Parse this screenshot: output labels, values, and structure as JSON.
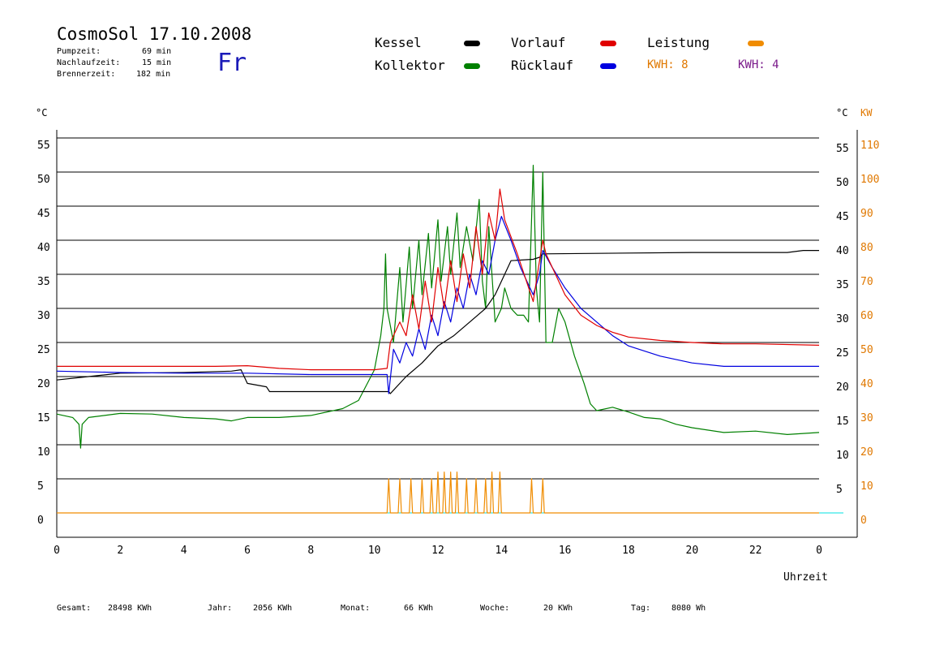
{
  "header": {
    "title": "CosmoSol 17.10.2008",
    "info": [
      {
        "label": "Pumpzeit:",
        "value": "69 min"
      },
      {
        "label": "Nachlaufzeit:",
        "value": "15 min"
      },
      {
        "label": "Brennerzeit:",
        "value": "182 min"
      }
    ],
    "weekday": "Fr"
  },
  "legend": {
    "items": [
      {
        "label": "Kessel",
        "color": "#000000"
      },
      {
        "label": "Vorlauf",
        "color": "#e00000"
      },
      {
        "label": "Leistung",
        "color": "#f08c00"
      },
      {
        "label": "Kollektor",
        "color": "#008000"
      },
      {
        "label": "Rücklauf",
        "color": "#0000e0"
      }
    ],
    "kwh1": {
      "text": "KWH: 8",
      "color": "#e07800"
    },
    "kwh2": {
      "text": "KWH: 4",
      "color": "#7a1a8a"
    }
  },
  "footer": [
    {
      "label": "Gesamt:",
      "value": "28498 KWh"
    },
    {
      "label": "Jahr:",
      "value": "2056 KWh"
    },
    {
      "label": "Monat:",
      "value": "66 KWh"
    },
    {
      "label": "Woche:",
      "value": "20 KWh"
    },
    {
      "label": "Tag:",
      "value": "8080 Wh"
    }
  ],
  "chart_data": {
    "type": "line",
    "xlabel": "Uhrzeit",
    "x_ticks": [
      "0",
      "2",
      "4",
      "6",
      "8",
      "10",
      "12",
      "14",
      "16",
      "18",
      "20",
      "22",
      "0"
    ],
    "xlim": [
      0,
      24
    ],
    "y_left_unit": "°C",
    "y_left_ticks": [
      "0",
      "5",
      "10",
      "15",
      "20",
      "25",
      "30",
      "35",
      "40",
      "45",
      "50",
      "55"
    ],
    "y_right_unit": "°C",
    "y_right_ticks": [
      "5",
      "10",
      "15",
      "20",
      "25",
      "30",
      "35",
      "40",
      "45",
      "50",
      "55"
    ],
    "y_right2_unit": "KW",
    "y_right2_ticks": [
      "0",
      "10",
      "20",
      "30",
      "40",
      "50",
      "60",
      "70",
      "80",
      "90",
      "100",
      "110"
    ],
    "ylim": [
      0,
      55
    ],
    "grid": true,
    "series": [
      {
        "name": "Kessel",
        "color": "#000000",
        "points": [
          [
            0,
            19.5
          ],
          [
            1,
            20
          ],
          [
            2,
            20.5
          ],
          [
            4,
            20.6
          ],
          [
            5.5,
            20.8
          ],
          [
            5.8,
            21
          ],
          [
            6,
            19
          ],
          [
            6.6,
            18.5
          ],
          [
            6.7,
            17.8
          ],
          [
            9.5,
            17.8
          ],
          [
            10.45,
            17.8
          ],
          [
            10.5,
            17.5
          ],
          [
            10.6,
            18
          ],
          [
            10.8,
            19
          ],
          [
            11,
            20
          ],
          [
            11.5,
            22
          ],
          [
            12,
            24.5
          ],
          [
            12.5,
            26
          ],
          [
            13,
            28
          ],
          [
            13.5,
            30
          ],
          [
            13.8,
            32
          ],
          [
            14.1,
            35
          ],
          [
            14.3,
            37
          ],
          [
            15,
            37.2
          ],
          [
            15.2,
            37.5
          ],
          [
            15.3,
            38
          ],
          [
            20,
            38.2
          ],
          [
            23,
            38.2
          ],
          [
            23.5,
            38.5
          ],
          [
            24,
            38.5
          ]
        ]
      },
      {
        "name": "Vorlauf",
        "color": "#e00000",
        "points": [
          [
            0,
            21.5
          ],
          [
            5,
            21.5
          ],
          [
            6,
            21.6
          ],
          [
            7,
            21.2
          ],
          [
            8,
            21
          ],
          [
            10,
            21
          ],
          [
            10.4,
            21.2
          ],
          [
            10.5,
            25
          ],
          [
            10.8,
            28
          ],
          [
            11,
            26
          ],
          [
            11.2,
            32
          ],
          [
            11.4,
            27
          ],
          [
            11.6,
            34
          ],
          [
            11.8,
            28
          ],
          [
            12,
            36
          ],
          [
            12.2,
            30
          ],
          [
            12.4,
            37
          ],
          [
            12.6,
            31
          ],
          [
            12.8,
            38
          ],
          [
            13,
            33
          ],
          [
            13.2,
            42
          ],
          [
            13.4,
            35
          ],
          [
            13.6,
            44
          ],
          [
            13.8,
            40
          ],
          [
            13.95,
            47.5
          ],
          [
            14.1,
            43
          ],
          [
            14.5,
            38
          ],
          [
            15,
            31
          ],
          [
            15.2,
            37
          ],
          [
            15.3,
            40
          ],
          [
            15.4,
            38
          ],
          [
            16,
            32
          ],
          [
            16.5,
            29
          ],
          [
            17,
            27.5
          ],
          [
            17.5,
            26.5
          ],
          [
            18,
            25.8
          ],
          [
            19,
            25.3
          ],
          [
            20,
            25
          ],
          [
            21,
            24.8
          ],
          [
            22,
            24.8
          ],
          [
            24,
            24.6
          ]
        ]
      },
      {
        "name": "Rücklauf",
        "color": "#0000e0",
        "points": [
          [
            0,
            20.8
          ],
          [
            2,
            20.6
          ],
          [
            4,
            20.5
          ],
          [
            6,
            20.5
          ],
          [
            8,
            20.3
          ],
          [
            10,
            20.3
          ],
          [
            10.4,
            20.3
          ],
          [
            10.45,
            17.5
          ],
          [
            10.6,
            24
          ],
          [
            10.8,
            22
          ],
          [
            11,
            25
          ],
          [
            11.2,
            23
          ],
          [
            11.4,
            27
          ],
          [
            11.6,
            24
          ],
          [
            11.8,
            29
          ],
          [
            12,
            26
          ],
          [
            12.2,
            31
          ],
          [
            12.4,
            28
          ],
          [
            12.6,
            33
          ],
          [
            12.8,
            30
          ],
          [
            13,
            35
          ],
          [
            13.2,
            32
          ],
          [
            13.4,
            37
          ],
          [
            13.6,
            35
          ],
          [
            13.8,
            40
          ],
          [
            14,
            43.5
          ],
          [
            14.3,
            40
          ],
          [
            14.6,
            36
          ],
          [
            15,
            32
          ],
          [
            15.2,
            35
          ],
          [
            15.3,
            38.5
          ],
          [
            15.6,
            36
          ],
          [
            16,
            33
          ],
          [
            16.5,
            30
          ],
          [
            17,
            28
          ],
          [
            17.5,
            26
          ],
          [
            18,
            24.5
          ],
          [
            19,
            23
          ],
          [
            20,
            22
          ],
          [
            21,
            21.5
          ],
          [
            24,
            21.5
          ]
        ]
      },
      {
        "name": "Kollektor",
        "color": "#008000",
        "points": [
          [
            0,
            14.5
          ],
          [
            0.5,
            14
          ],
          [
            0.7,
            13
          ],
          [
            0.75,
            9.5
          ],
          [
            0.8,
            13
          ],
          [
            1,
            14
          ],
          [
            2,
            14.6
          ],
          [
            3,
            14.5
          ],
          [
            4,
            14
          ],
          [
            5,
            13.8
          ],
          [
            5.5,
            13.5
          ],
          [
            6,
            14
          ],
          [
            7,
            14
          ],
          [
            8,
            14.3
          ],
          [
            9,
            15.3
          ],
          [
            9.5,
            16.5
          ],
          [
            10,
            21
          ],
          [
            10.2,
            26
          ],
          [
            10.3,
            30
          ],
          [
            10.35,
            38
          ],
          [
            10.4,
            30
          ],
          [
            10.6,
            25
          ],
          [
            10.8,
            36
          ],
          [
            10.9,
            28
          ],
          [
            11.1,
            39
          ],
          [
            11.2,
            30
          ],
          [
            11.4,
            40
          ],
          [
            11.5,
            32
          ],
          [
            11.7,
            41
          ],
          [
            11.8,
            33
          ],
          [
            12,
            43
          ],
          [
            12.1,
            34
          ],
          [
            12.3,
            42
          ],
          [
            12.4,
            35
          ],
          [
            12.6,
            44
          ],
          [
            12.7,
            36
          ],
          [
            12.9,
            42
          ],
          [
            13.1,
            37
          ],
          [
            13.3,
            46
          ],
          [
            13.4,
            34
          ],
          [
            13.5,
            30
          ],
          [
            13.6,
            42
          ],
          [
            13.7,
            35
          ],
          [
            13.8,
            28
          ],
          [
            14,
            30
          ],
          [
            14.1,
            33
          ],
          [
            14.3,
            30
          ],
          [
            14.5,
            29
          ],
          [
            14.7,
            29
          ],
          [
            14.85,
            28
          ],
          [
            15,
            51
          ],
          [
            15.1,
            33
          ],
          [
            15.2,
            28
          ],
          [
            15.3,
            50
          ],
          [
            15.4,
            25
          ],
          [
            15.6,
            25
          ],
          [
            15.8,
            30
          ],
          [
            16,
            28
          ],
          [
            16.3,
            23
          ],
          [
            16.6,
            19
          ],
          [
            16.8,
            16
          ],
          [
            17,
            15
          ],
          [
            17.5,
            15.5
          ],
          [
            18,
            14.8
          ],
          [
            18.5,
            14
          ],
          [
            19,
            13.8
          ],
          [
            19.5,
            13
          ],
          [
            20,
            12.5
          ],
          [
            21,
            11.8
          ],
          [
            22,
            12
          ],
          [
            23,
            11.5
          ],
          [
            24,
            11.8
          ]
        ]
      },
      {
        "name": "Leistung",
        "color": "#f08c00",
        "points": [
          [
            0,
            0
          ],
          [
            10.4,
            0
          ],
          [
            10.45,
            5
          ],
          [
            10.5,
            0
          ],
          [
            10.75,
            0
          ],
          [
            10.8,
            5
          ],
          [
            10.85,
            0
          ],
          [
            11.1,
            0
          ],
          [
            11.15,
            5
          ],
          [
            11.2,
            0
          ],
          [
            11.45,
            0
          ],
          [
            11.5,
            5
          ],
          [
            11.55,
            0
          ],
          [
            11.75,
            0
          ],
          [
            11.8,
            5
          ],
          [
            11.85,
            0
          ],
          [
            11.95,
            0
          ],
          [
            12,
            6
          ],
          [
            12.05,
            0
          ],
          [
            12.15,
            0
          ],
          [
            12.2,
            6
          ],
          [
            12.25,
            0
          ],
          [
            12.35,
            0
          ],
          [
            12.4,
            6
          ],
          [
            12.45,
            0
          ],
          [
            12.55,
            0
          ],
          [
            12.6,
            6
          ],
          [
            12.65,
            0
          ],
          [
            12.85,
            0
          ],
          [
            12.9,
            5
          ],
          [
            12.95,
            0
          ],
          [
            13.15,
            0
          ],
          [
            13.2,
            5
          ],
          [
            13.25,
            0
          ],
          [
            13.45,
            0
          ],
          [
            13.5,
            5
          ],
          [
            13.55,
            0
          ],
          [
            13.65,
            0
          ],
          [
            13.7,
            6
          ],
          [
            13.75,
            0
          ],
          [
            13.9,
            0
          ],
          [
            13.95,
            6
          ],
          [
            14,
            0
          ],
          [
            14.9,
            0
          ],
          [
            14.95,
            5
          ],
          [
            15,
            0
          ],
          [
            15.25,
            0
          ],
          [
            15.3,
            5
          ],
          [
            15.35,
            0
          ],
          [
            24,
            0
          ]
        ]
      }
    ]
  }
}
